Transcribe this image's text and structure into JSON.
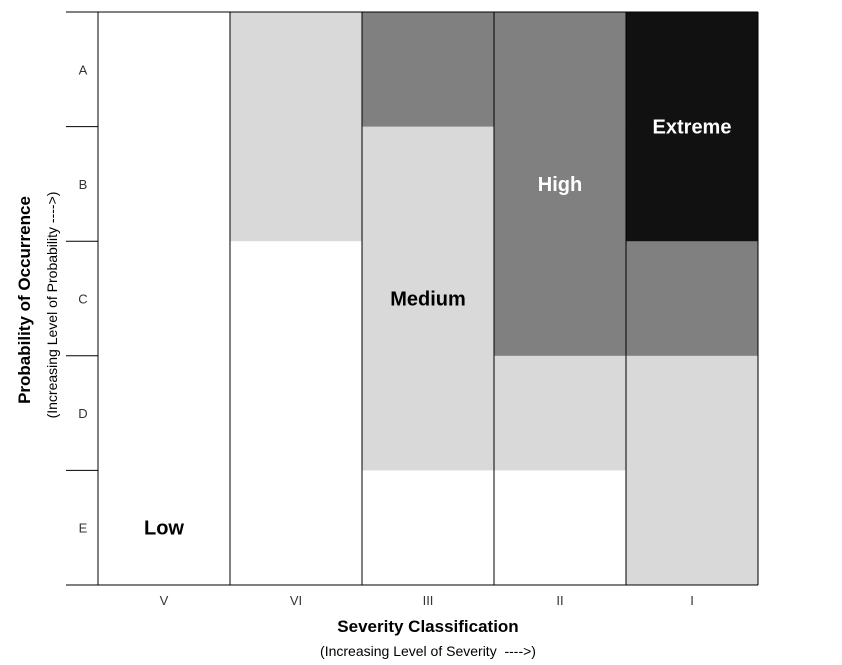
{
  "chart_data": {
    "type": "heatmap",
    "title": "",
    "xlabel": "Severity Classification",
    "xlabel_sub": "(Increasing Level of Severity  ---->)",
    "ylabel": "Probability of Occurrence",
    "ylabel_sub": "(Increasing Level of Probability ---->)",
    "x_categories": [
      "V",
      "VI",
      "III",
      "II",
      "I"
    ],
    "y_categories": [
      "A",
      "B",
      "C",
      "D",
      "E"
    ],
    "levels": [
      "Low",
      "Medium",
      "High",
      "Extreme"
    ],
    "level_colors": {
      "Low": "#ffffff",
      "Medium": "#d9d9d9",
      "High": "#808080",
      "Extreme": "#111111"
    },
    "cells": [
      [
        "Low",
        "Medium",
        "High",
        "High",
        "Extreme"
      ],
      [
        "Low",
        "Medium",
        "Medium",
        "High",
        "Extreme"
      ],
      [
        "Low",
        "Low",
        "Medium",
        "High",
        "High"
      ],
      [
        "Low",
        "Low",
        "Medium",
        "Medium",
        "Medium"
      ],
      [
        "Low",
        "Low",
        "Low",
        "Low",
        "Medium"
      ]
    ],
    "region_labels": [
      {
        "text": "Low",
        "col": 0,
        "row": 4,
        "color": "#000000"
      },
      {
        "text": "Medium",
        "col": 2,
        "row": 2,
        "color": "#000000"
      },
      {
        "text": "High",
        "col": 3,
        "row": 1,
        "color": "#ffffff"
      },
      {
        "text": "Extreme",
        "col": 4,
        "row": 0.5,
        "color": "#ffffff"
      }
    ]
  }
}
